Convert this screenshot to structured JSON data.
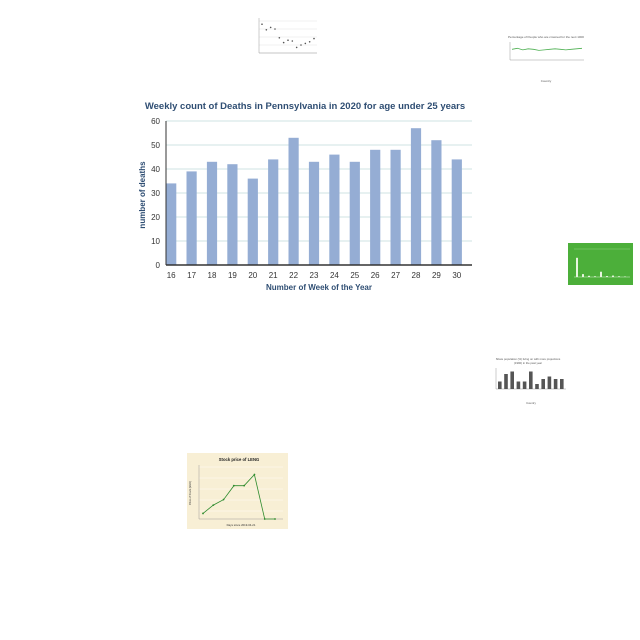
{
  "chart_data": {
    "type": "bar",
    "title": "Weekly count of Deaths in Pennsylvania in 2020 for age under  25 years",
    "xlabel": "Number of Week of the Year",
    "ylabel": "number of deaths",
    "categories": [
      "16",
      "17",
      "18",
      "19",
      "20",
      "21",
      "22",
      "23",
      "24",
      "25",
      "26",
      "27",
      "28",
      "29",
      "30"
    ],
    "values": [
      34,
      39,
      43,
      42,
      36,
      44,
      53,
      43,
      46,
      43,
      48,
      48,
      57,
      52,
      44
    ],
    "ylim": [
      0,
      60
    ],
    "yticks": [
      "0",
      "10",
      "20",
      "30",
      "40",
      "50",
      "60"
    ],
    "grid": true,
    "colors": {
      "bar": "#95add4",
      "title": "#2f4e73",
      "axis": "#333333",
      "grid": "#cfe3e3"
    }
  },
  "thumbnails": {
    "scatter": {
      "title": "",
      "values": [
        8.6,
        7.9,
        8.2,
        8.0,
        6.9,
        6.3,
        6.6,
        6.5,
        5.7,
        6.0,
        6.2,
        6.4,
        6.8
      ]
    },
    "line": {
      "title": "Percentage of People who are crowned for the next 1000",
      "xlabel": "Country",
      "values": [
        70,
        72,
        69,
        71,
        70,
        68,
        69,
        70,
        71,
        70,
        69,
        70,
        71,
        72
      ]
    },
    "green_bar": {
      "title": "",
      "values": [
        80,
        12,
        5,
        3,
        22,
        4,
        6,
        3,
        2
      ]
    },
    "gray_bar": {
      "title": "Share population (%) living on with more projections",
      "subtitle": "(1990) in the past year",
      "xlabel": "Country",
      "values": [
        3,
        6,
        7,
        3,
        3,
        7,
        2,
        4,
        5,
        4,
        4
      ]
    },
    "stock": {
      "title": "Stock price of LENG",
      "xlabel": "Days since 2019-04-21",
      "ylabel": "Price of Stock (EUR)",
      "values": [
        10,
        13,
        15,
        20,
        20,
        24,
        8,
        8
      ]
    }
  }
}
